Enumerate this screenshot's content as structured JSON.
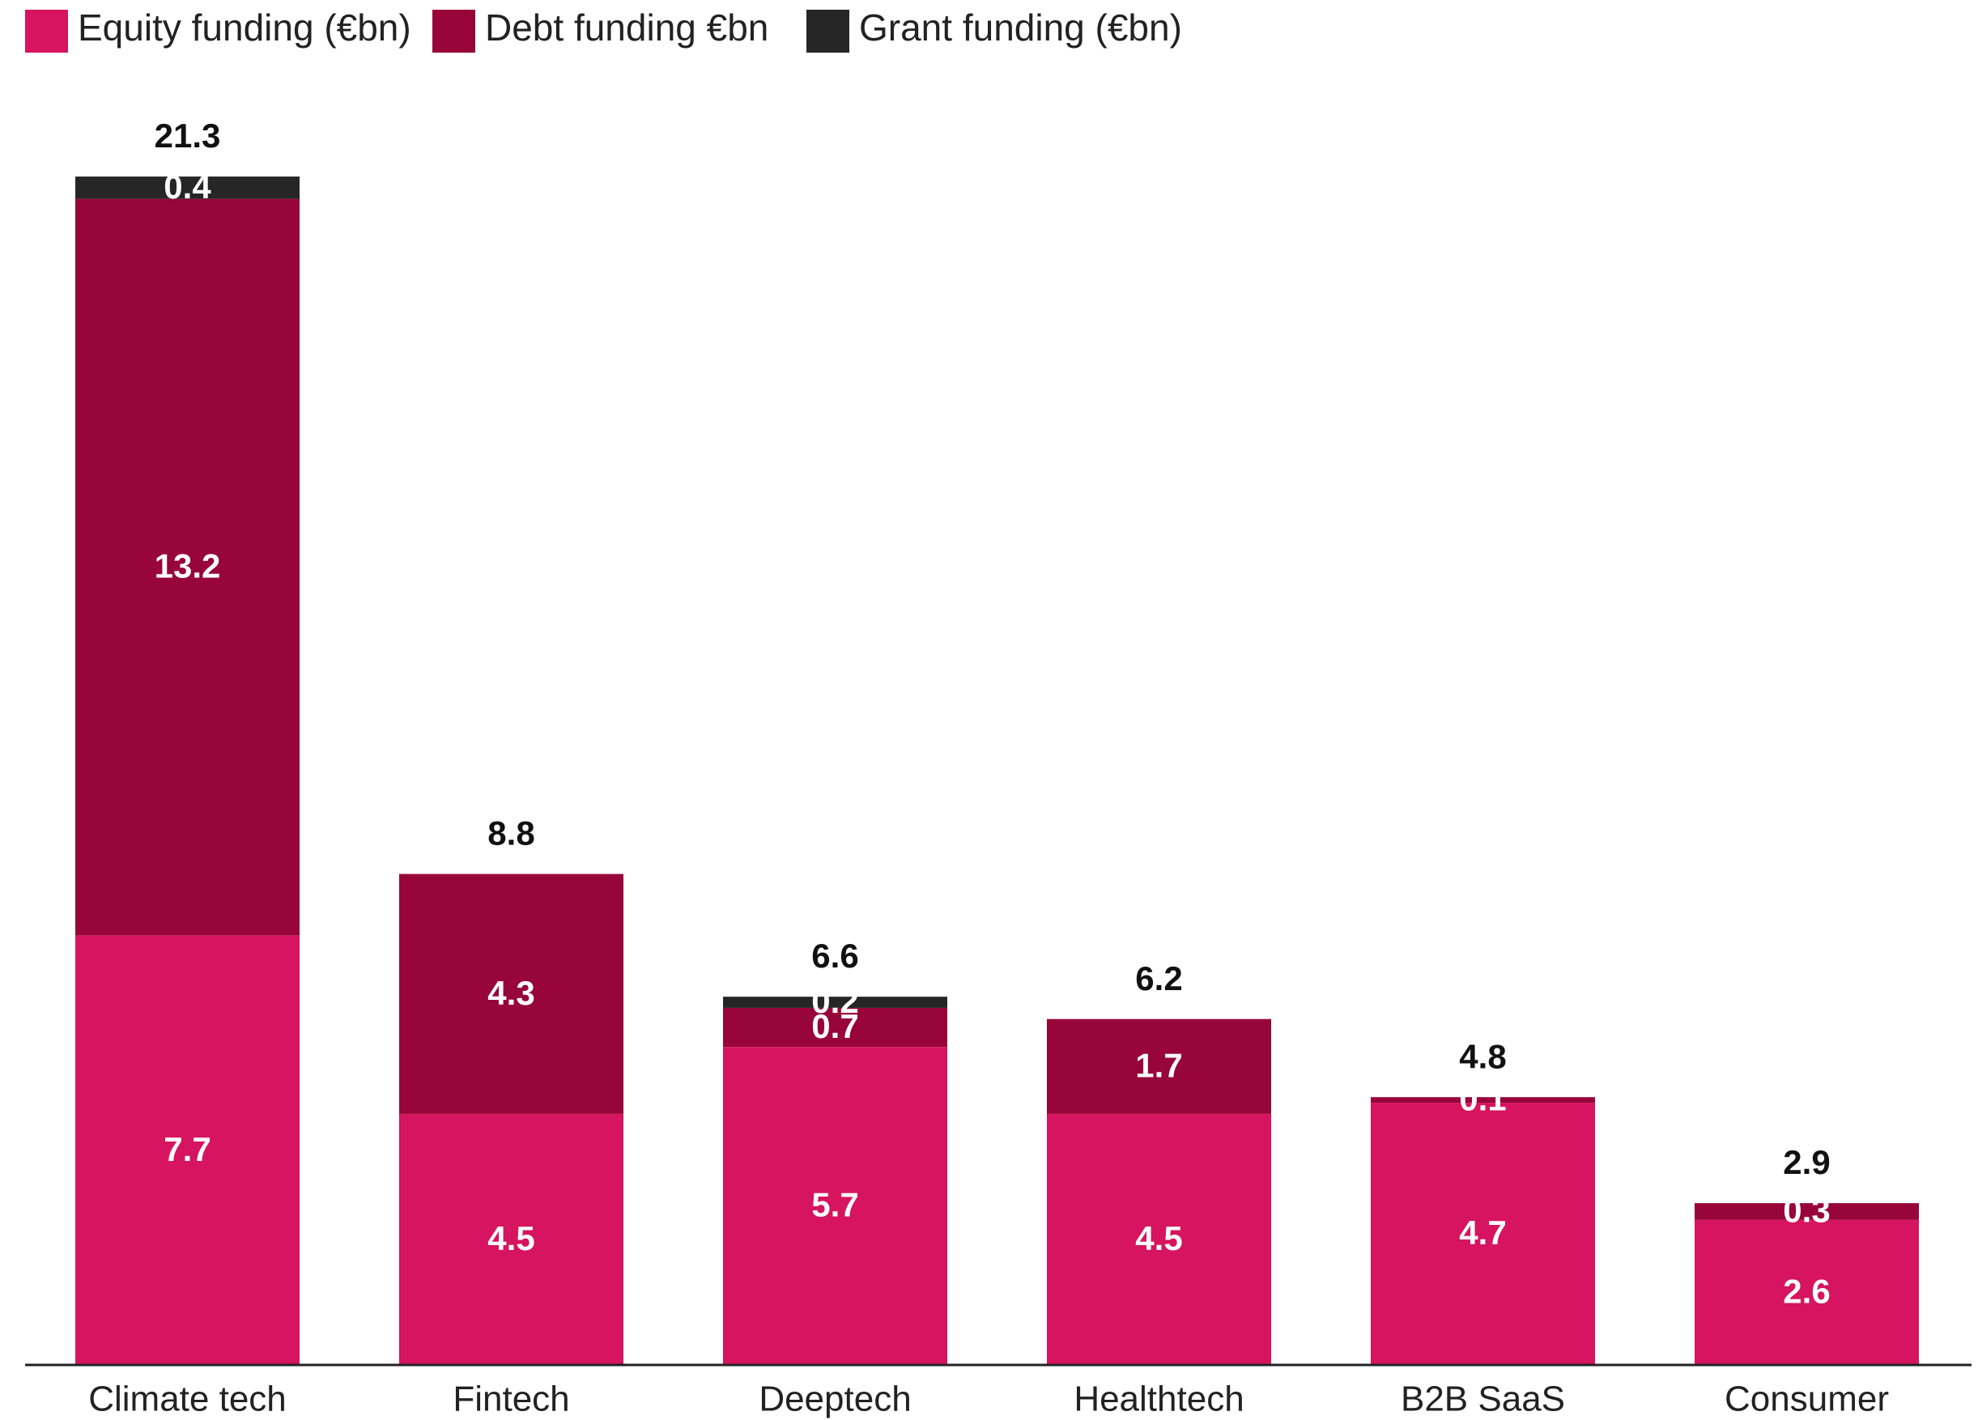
{
  "chart_data": {
    "type": "stacked_bar",
    "categories": [
      "Climate tech",
      "Fintech",
      "Deeptech",
      "Healthtech",
      "B2B SaaS",
      "Consumer"
    ],
    "series": [
      {
        "name": "Equity funding (€bn)",
        "color": "#d6145f",
        "values": [
          7.7,
          4.5,
          5.7,
          4.5,
          4.7,
          2.6
        ]
      },
      {
        "name": "Debt funding €bn",
        "color": "#980538",
        "values": [
          13.2,
          4.3,
          0.7,
          1.7,
          0.1,
          0.3
        ]
      },
      {
        "name": "Grant funding (€bn)",
        "color": "#262626",
        "values": [
          0.4,
          null,
          0.2,
          null,
          null,
          null
        ]
      }
    ],
    "totals": [
      21.3,
      8.8,
      6.6,
      6.2,
      4.8,
      2.9
    ],
    "ylim": [
      0,
      24
    ],
    "legend": "top-left"
  }
}
